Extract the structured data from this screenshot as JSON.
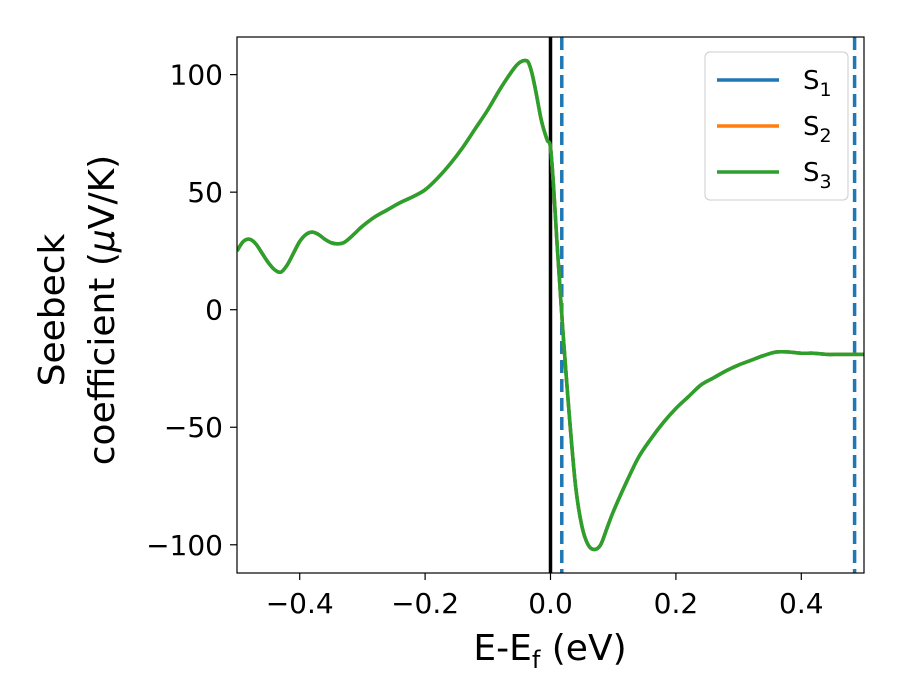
{
  "chart_data": {
    "type": "line",
    "xlabel": "E-E",
    "xlabel_sub": "f",
    "xlabel_unit": " (eV)",
    "ylabel_line1": "Seebeck",
    "ylabel_line2_prefix": "coefficient  (",
    "ylabel_mu": "μ",
    "ylabel_line2_suffix": "V/K)",
    "xlim": [
      -0.5,
      0.5
    ],
    "ylim": [
      -112,
      116
    ],
    "xticks": [
      -0.4,
      -0.2,
      0.0,
      0.2,
      0.4
    ],
    "xtick_labels": [
      "−0.4",
      "−0.2",
      "0.0",
      "0.2",
      "0.4"
    ],
    "yticks": [
      100,
      50,
      0,
      -50,
      -100
    ],
    "ytick_labels": [
      "100",
      "50",
      "0",
      "−50",
      "−100"
    ],
    "legend_position": "top-right",
    "grid": false,
    "series": [
      {
        "name_base": "S",
        "name_sub": "1",
        "color": "#1f77b4"
      },
      {
        "name_base": "S",
        "name_sub": "2",
        "color": "#ff7f0e"
      },
      {
        "name_base": "S",
        "name_sub": "3",
        "color": "#2ca02c"
      }
    ],
    "curve": {
      "x": [
        -0.5,
        -0.49,
        -0.48,
        -0.47,
        -0.46,
        -0.45,
        -0.44,
        -0.43,
        -0.42,
        -0.41,
        -0.4,
        -0.39,
        -0.38,
        -0.37,
        -0.36,
        -0.35,
        -0.34,
        -0.33,
        -0.32,
        -0.31,
        -0.3,
        -0.28,
        -0.26,
        -0.24,
        -0.22,
        -0.2,
        -0.18,
        -0.16,
        -0.14,
        -0.12,
        -0.1,
        -0.08,
        -0.06,
        -0.05,
        -0.04,
        -0.035,
        -0.03,
        -0.025,
        -0.02,
        -0.015,
        -0.01,
        -0.005,
        0.0,
        0.005,
        0.01,
        0.015,
        0.02,
        0.03,
        0.04,
        0.05,
        0.06,
        0.07,
        0.08,
        0.09,
        0.1,
        0.12,
        0.14,
        0.16,
        0.18,
        0.2,
        0.22,
        0.24,
        0.26,
        0.28,
        0.3,
        0.32,
        0.34,
        0.36,
        0.38,
        0.4,
        0.42,
        0.44,
        0.46,
        0.48,
        0.5
      ],
      "y": [
        25,
        29,
        30,
        28,
        24,
        20,
        17,
        16,
        19,
        24,
        29,
        32,
        33,
        32,
        30,
        28.5,
        28,
        28.5,
        30.5,
        33,
        35.5,
        39.5,
        42.5,
        45.5,
        48,
        51,
        56,
        62,
        69,
        77,
        85,
        94,
        102,
        105,
        106,
        105,
        101,
        95,
        88,
        81,
        76,
        72,
        69,
        52,
        30,
        10,
        -10,
        -45,
        -75,
        -92,
        -100,
        -102,
        -100,
        -93,
        -86,
        -74,
        -63,
        -55,
        -48,
        -42,
        -37,
        -32,
        -29,
        -26,
        -23.5,
        -21.5,
        -19.5,
        -18,
        -18,
        -18.5,
        -18.5,
        -19,
        -19,
        -19,
        -19
      ]
    },
    "vlines": [
      {
        "x": 0.0,
        "style": "solid",
        "color": "#000000"
      },
      {
        "x": 0.018,
        "style": "dashed",
        "color": "#1f77b4"
      },
      {
        "x": 0.485,
        "style": "dashed",
        "color": "#1f77b4"
      }
    ]
  }
}
